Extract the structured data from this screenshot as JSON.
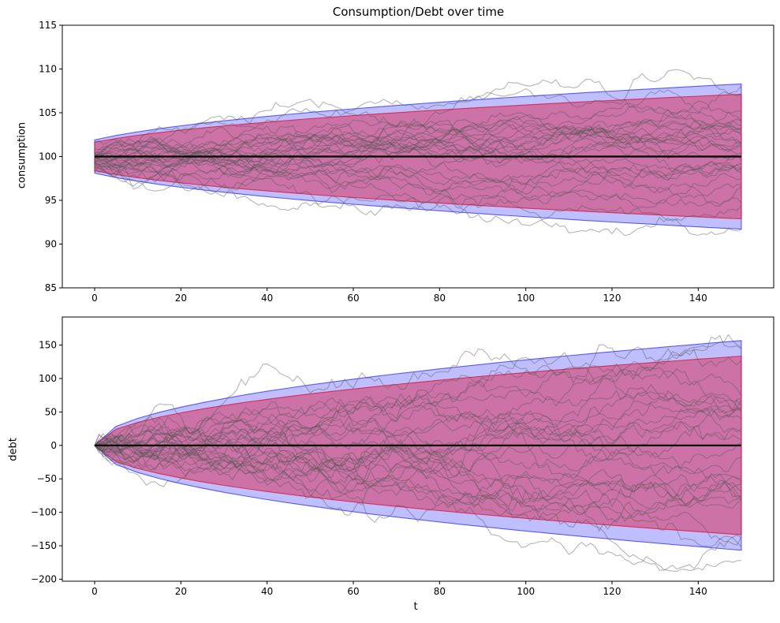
{
  "chart_data": [
    {
      "type": "line",
      "name": "consumption",
      "title": "Consumption/Debt over time",
      "ylabel": "consumption",
      "xlim": [
        -7.5,
        157.5
      ],
      "ylim": [
        85,
        115
      ],
      "xticks": [
        0,
        20,
        40,
        60,
        80,
        100,
        120,
        140
      ],
      "yticks": [
        85,
        90,
        95,
        100,
        105,
        110,
        115
      ],
      "t": [
        0,
        5,
        10,
        15,
        20,
        25,
        30,
        35,
        40,
        45,
        50,
        55,
        60,
        65,
        70,
        75,
        80,
        85,
        90,
        95,
        100,
        105,
        110,
        115,
        120,
        125,
        130,
        135,
        140,
        145,
        150
      ],
      "mean": 100,
      "bands": [
        {
          "name": "outer-95pct",
          "color": "#0000ff",
          "alpha": 0.25,
          "half": [
            1.9,
            2.41,
            2.82,
            3.19,
            3.51,
            3.81,
            4.08,
            4.34,
            4.59,
            4.82,
            5.04,
            5.25,
            5.45,
            5.65,
            5.84,
            6.02,
            6.2,
            6.38,
            6.54,
            6.71,
            6.87,
            7.03,
            7.18,
            7.33,
            7.48,
            7.62,
            7.76,
            7.9,
            8.04,
            8.17,
            8.3
          ]
        },
        {
          "name": "inner-90pct",
          "color": "#dc143c",
          "alpha": 0.45,
          "half": [
            1.63,
            2.06,
            2.42,
            2.73,
            3.01,
            3.27,
            3.5,
            3.72,
            3.93,
            4.13,
            4.32,
            4.5,
            4.68,
            4.85,
            5.01,
            5.17,
            5.32,
            5.47,
            5.61,
            5.75,
            5.89,
            6.03,
            6.16,
            6.29,
            6.41,
            6.54,
            6.66,
            6.78,
            6.89,
            7.01,
            7.12
          ]
        }
      ],
      "sample_paths": {
        "count": 30,
        "start": 100,
        "start_std": 0.85,
        "step_std": 0.34,
        "steps": 150,
        "seed": 42,
        "color": "#555555",
        "alpha": 0.4
      }
    },
    {
      "type": "line",
      "name": "debt",
      "ylabel": "debt",
      "xlabel": "t",
      "xlim": [
        -7.5,
        157.5
      ],
      "ylim": [
        -203,
        192
      ],
      "xticks": [
        0,
        20,
        40,
        60,
        80,
        100,
        120,
        140
      ],
      "yticks": [
        -200,
        -150,
        -100,
        -50,
        0,
        50,
        100,
        150
      ],
      "t": [
        0,
        5,
        10,
        15,
        20,
        25,
        30,
        35,
        40,
        45,
        50,
        55,
        60,
        65,
        70,
        75,
        80,
        85,
        90,
        95,
        100,
        105,
        110,
        115,
        120,
        125,
        130,
        135,
        140,
        145,
        150
      ],
      "mean": 0,
      "bands": [
        {
          "name": "outer-95pct",
          "color": "#0000ff",
          "alpha": 0.25,
          "half": [
            0,
            28.6,
            40.5,
            49.6,
            57.2,
            64.0,
            70.1,
            75.7,
            81.0,
            85.9,
            90.5,
            94.9,
            99.1,
            103.2,
            107.1,
            110.8,
            114.5,
            118.0,
            121.4,
            124.8,
            128.0,
            131.2,
            134.2,
            137.3,
            140.2,
            143.1,
            145.9,
            148.7,
            151.4,
            154.1,
            156.8
          ]
        },
        {
          "name": "inner-90pct",
          "color": "#dc143c",
          "alpha": 0.45,
          "half": [
            0,
            24.4,
            34.5,
            42.2,
            48.7,
            54.5,
            59.7,
            64.5,
            68.9,
            73.1,
            77.1,
            80.8,
            84.4,
            87.9,
            91.2,
            94.4,
            97.5,
            100.5,
            103.4,
            106.2,
            109.0,
            111.7,
            114.3,
            116.9,
            119.4,
            121.9,
            124.3,
            126.6,
            129.0,
            131.3,
            133.5
          ]
        }
      ],
      "sample_paths": {
        "count": 30,
        "start": 0,
        "start_std": 0,
        "step_std": 6.3,
        "steps": 150,
        "seed": 11,
        "color": "#555555",
        "alpha": 0.4
      }
    }
  ]
}
